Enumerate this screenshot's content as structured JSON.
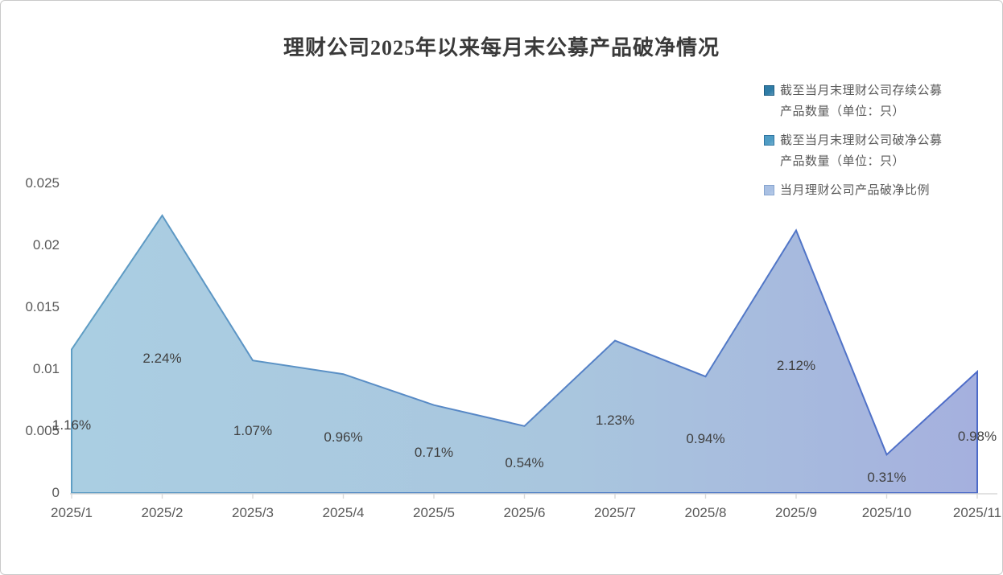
{
  "chart_data": {
    "type": "area",
    "title": "理财公司2025年以来每月末公募产品破净情况",
    "categories": [
      "2025/1",
      "2025/2",
      "2025/3",
      "2025/4",
      "2025/5",
      "2025/6",
      "2025/7",
      "2025/8",
      "2025/9",
      "2025/10",
      "2025/11"
    ],
    "series": [
      {
        "name": "当月理财公司产品破净比例",
        "values_percent": [
          1.16,
          2.24,
          1.07,
          0.96,
          0.71,
          0.54,
          1.23,
          0.94,
          2.12,
          0.31,
          0.98
        ],
        "data_labels": [
          "1.16%",
          "2.24%",
          "1.07%",
          "0.96%",
          "0.71%",
          "0.54%",
          "1.23%",
          "0.94%",
          "2.12%",
          "0.31%",
          "0.98%"
        ]
      }
    ],
    "legend": {
      "position": "top-right",
      "items": [
        {
          "lines": [
            "截至当月末理财公司存续公募",
            "产品数量（单位：只）"
          ],
          "swatch_fill": "#2f7ca6",
          "swatch_border": "#1f5d82"
        },
        {
          "lines": [
            "截至当月末理财公司破净公募",
            "产品数量（单位：只）"
          ],
          "swatch_fill": "#4f9cc4",
          "swatch_border": "#2f75a1"
        },
        {
          "lines": [
            "当月理财公司产品破净比例"
          ],
          "swatch_fill": "#a9c0e3",
          "swatch_border": "#87a5cf"
        }
      ]
    },
    "y_axis": {
      "min": 0,
      "max": 0.025,
      "tick_labels": [
        "0",
        "0.005",
        "0.01",
        "0.015",
        "0.02",
        "0.025"
      ]
    },
    "gridlines": false,
    "colors": {
      "area_fill_start": "#aacee2",
      "area_fill_mid": "#a9c6de",
      "area_fill_end": "#a5b0de",
      "area_stroke_start": "#5f9ec4",
      "area_stroke_end": "#4d6bc8",
      "axis_line": "#d9d9d9",
      "axis_text": "#595959",
      "data_label_text": "#404040",
      "title_text": "#3a3a3a"
    }
  }
}
